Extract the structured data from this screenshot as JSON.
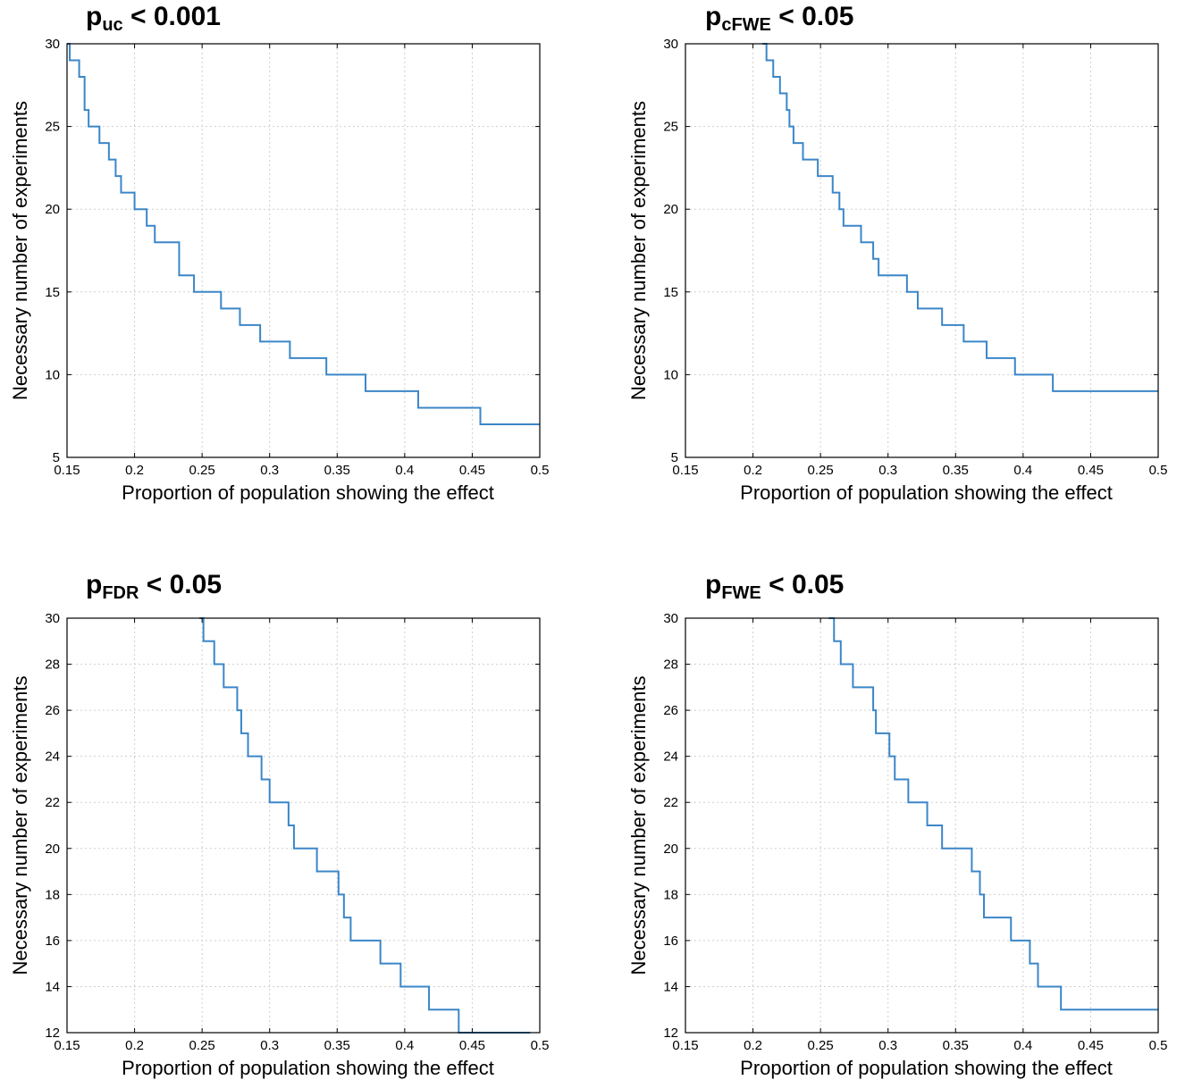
{
  "chart_data": [
    {
      "type": "line",
      "title": {
        "main": "p",
        "sub": "uc",
        "rest": " < 0.001"
      },
      "xlabel": "Proportion of population showing the effect",
      "ylabel": "Necessary number of experiments",
      "xlim": [
        0.15,
        0.5
      ],
      "ylim": [
        5,
        30
      ],
      "xticks": [
        0.15,
        0.2,
        0.25,
        0.3,
        0.35,
        0.4,
        0.45,
        0.5
      ],
      "xticklabels": [
        "0.15",
        "0.2",
        "0.25",
        "0.3",
        "0.35",
        "0.4",
        "0.45",
        "0.5"
      ],
      "yticks": [
        5,
        10,
        15,
        20,
        25,
        30
      ],
      "yticklabels": [
        "5",
        "10",
        "15",
        "20",
        "25",
        "30"
      ],
      "grid": true,
      "series": [
        {
          "color": "#3b86c8",
          "step_x": [
            0.15,
            0.152,
            0.159,
            0.163,
            0.166,
            0.174,
            0.181,
            0.186,
            0.19,
            0.2,
            0.209,
            0.215,
            0.233,
            0.244,
            0.264,
            0.278,
            0.293,
            0.315,
            0.342,
            0.371,
            0.41,
            0.456,
            0.5
          ],
          "step_y": [
            30,
            29,
            28,
            26,
            25,
            24,
            23,
            22,
            21,
            20,
            19,
            18,
            16,
            15,
            14,
            13,
            12,
            11,
            10,
            9,
            8,
            7,
            7
          ]
        }
      ]
    },
    {
      "type": "line",
      "title": {
        "main": "p",
        "sub": "cFWE",
        "rest": " < 0.05"
      },
      "xlabel": "Proportion of population showing the effect",
      "ylabel": "Necessary number of experiments",
      "xlim": [
        0.15,
        0.5
      ],
      "ylim": [
        5,
        30
      ],
      "xticks": [
        0.15,
        0.2,
        0.25,
        0.3,
        0.35,
        0.4,
        0.45,
        0.5
      ],
      "xticklabels": [
        "0.15",
        "0.2",
        "0.25",
        "0.3",
        "0.35",
        "0.4",
        "0.45",
        "0.5"
      ],
      "yticks": [
        5,
        10,
        15,
        20,
        25,
        30
      ],
      "yticklabels": [
        "5",
        "10",
        "15",
        "20",
        "25",
        "30"
      ],
      "grid": true,
      "series": [
        {
          "color": "#3b86c8",
          "step_x": [
            0.207,
            0.21,
            0.215,
            0.22,
            0.225,
            0.227,
            0.23,
            0.237,
            0.248,
            0.259,
            0.264,
            0.267,
            0.28,
            0.289,
            0.293,
            0.314,
            0.322,
            0.34,
            0.356,
            0.373,
            0.394,
            0.422,
            0.453,
            0.488,
            0.5
          ],
          "step_y": [
            30,
            29,
            28,
            27,
            26,
            25,
            24,
            23,
            22,
            21,
            20,
            19,
            18,
            17,
            16,
            15,
            14,
            13,
            12,
            11,
            10,
            9,
            9,
            9,
            9
          ]
        }
      ]
    },
    {
      "type": "line",
      "title": {
        "main": "p",
        "sub": "FDR",
        "rest": " < 0.05"
      },
      "xlabel": "Proportion of population showing the effect",
      "ylabel": "Necessary number of experiments",
      "xlim": [
        0.15,
        0.5
      ],
      "ylim": [
        12,
        30
      ],
      "xticks": [
        0.15,
        0.2,
        0.25,
        0.3,
        0.35,
        0.4,
        0.45,
        0.5
      ],
      "xticklabels": [
        "0.15",
        "0.2",
        "0.25",
        "0.3",
        "0.35",
        "0.4",
        "0.45",
        "0.5"
      ],
      "yticks": [
        12,
        14,
        16,
        18,
        20,
        22,
        24,
        26,
        28,
        30
      ],
      "yticklabels": [
        "12",
        "14",
        "16",
        "18",
        "20",
        "22",
        "24",
        "26",
        "28",
        "30"
      ],
      "grid": true,
      "series": [
        {
          "color": "#3b86c8",
          "step_x": [
            0.248,
            0.251,
            0.259,
            0.266,
            0.276,
            0.279,
            0.284,
            0.294,
            0.3,
            0.314,
            0.318,
            0.335,
            0.351,
            0.355,
            0.36,
            0.382,
            0.397,
            0.418,
            0.44,
            0.458,
            0.489,
            0.493
          ],
          "step_y": [
            30,
            29,
            28,
            27,
            26,
            25,
            24,
            23,
            22,
            21,
            20,
            19,
            18,
            17,
            16,
            15,
            14,
            13,
            12,
            12,
            12,
            12
          ]
        }
      ]
    },
    {
      "type": "line",
      "title": {
        "main": "p",
        "sub": "FWE",
        "rest": " < 0.05"
      },
      "xlabel": "Proportion of population showing the effect",
      "ylabel": "Necessary number of experiments",
      "xlim": [
        0.15,
        0.5
      ],
      "ylim": [
        12,
        30
      ],
      "xticks": [
        0.15,
        0.2,
        0.25,
        0.3,
        0.35,
        0.4,
        0.45,
        0.5
      ],
      "xticklabels": [
        "0.15",
        "0.2",
        "0.25",
        "0.3",
        "0.35",
        "0.4",
        "0.45",
        "0.5"
      ],
      "yticks": [
        12,
        14,
        16,
        18,
        20,
        22,
        24,
        26,
        28,
        30
      ],
      "yticklabels": [
        "12",
        "14",
        "16",
        "18",
        "20",
        "22",
        "24",
        "26",
        "28",
        "30"
      ],
      "grid": true,
      "series": [
        {
          "color": "#3b86c8",
          "step_x": [
            0.256,
            0.26,
            0.265,
            0.274,
            0.289,
            0.291,
            0.301,
            0.305,
            0.315,
            0.329,
            0.34,
            0.362,
            0.368,
            0.371,
            0.391,
            0.405,
            0.411,
            0.428,
            0.452,
            0.466,
            0.5
          ],
          "step_y": [
            30,
            29,
            28,
            27,
            26,
            25,
            24,
            23,
            22,
            21,
            20,
            19,
            18,
            17,
            16,
            15,
            14,
            13,
            13,
            13,
            13
          ]
        }
      ]
    }
  ]
}
